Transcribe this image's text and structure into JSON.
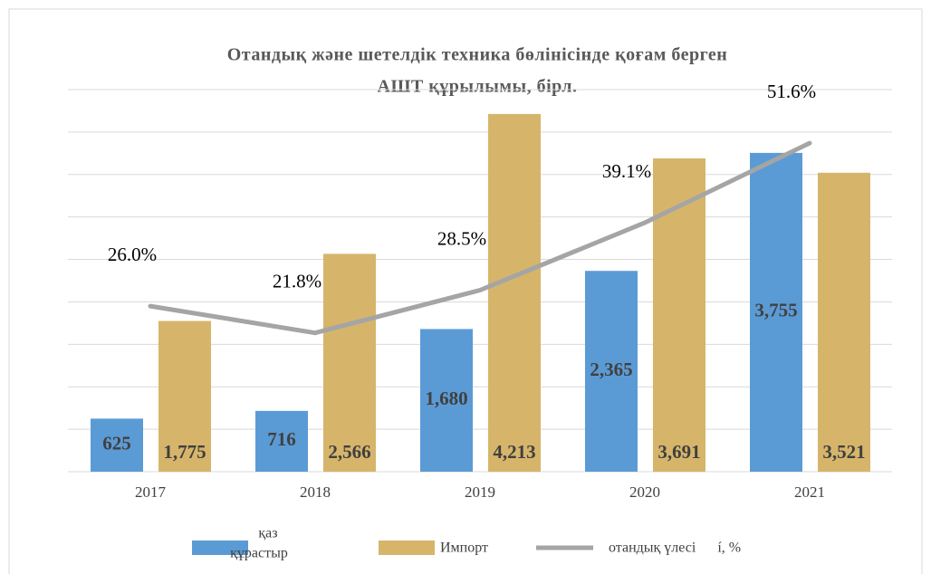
{
  "chart_data": {
    "type": "bar",
    "title": [
      "Отандық және шетелдік техника бөлінісінде қоғам берген",
      "АШТ құрылымы, бірл."
    ],
    "categories": [
      "2017",
      "2018",
      "2019",
      "2020",
      "2021"
    ],
    "series": [
      {
        "name": [
          "қаз",
          "құрастыр"
        ],
        "color": "#5b9bd5",
        "values": [
          625,
          716,
          1680,
          2365,
          3755
        ],
        "value_labels": [
          "625",
          "716",
          "1,680",
          "2,365",
          "3,755"
        ]
      },
      {
        "name": "Импорт",
        "color": "#d6b56b",
        "values": [
          1775,
          2566,
          4213,
          3691,
          3521
        ],
        "value_labels": [
          "1,775",
          "2,566",
          "4,213",
          "3,691",
          "3,521"
        ]
      },
      {
        "name": "отандық үлесі      í, %",
        "color": "#a5a5a5",
        "type": "line",
        "axis": "y2",
        "values": [
          26.0,
          21.8,
          28.5,
          39.1,
          51.6
        ],
        "value_labels": [
          "26.0%",
          "21.8%",
          "28.5%",
          "39.1%",
          "51.6%"
        ]
      }
    ],
    "ylim": [
      0,
      4500
    ],
    "yticks": [
      0,
      500,
      1000,
      1500,
      2000,
      2500,
      3000,
      3500,
      4000,
      4500
    ],
    "y2lim": [
      0,
      60
    ],
    "grid": true,
    "tick_labels": false,
    "legend": "bottom"
  }
}
